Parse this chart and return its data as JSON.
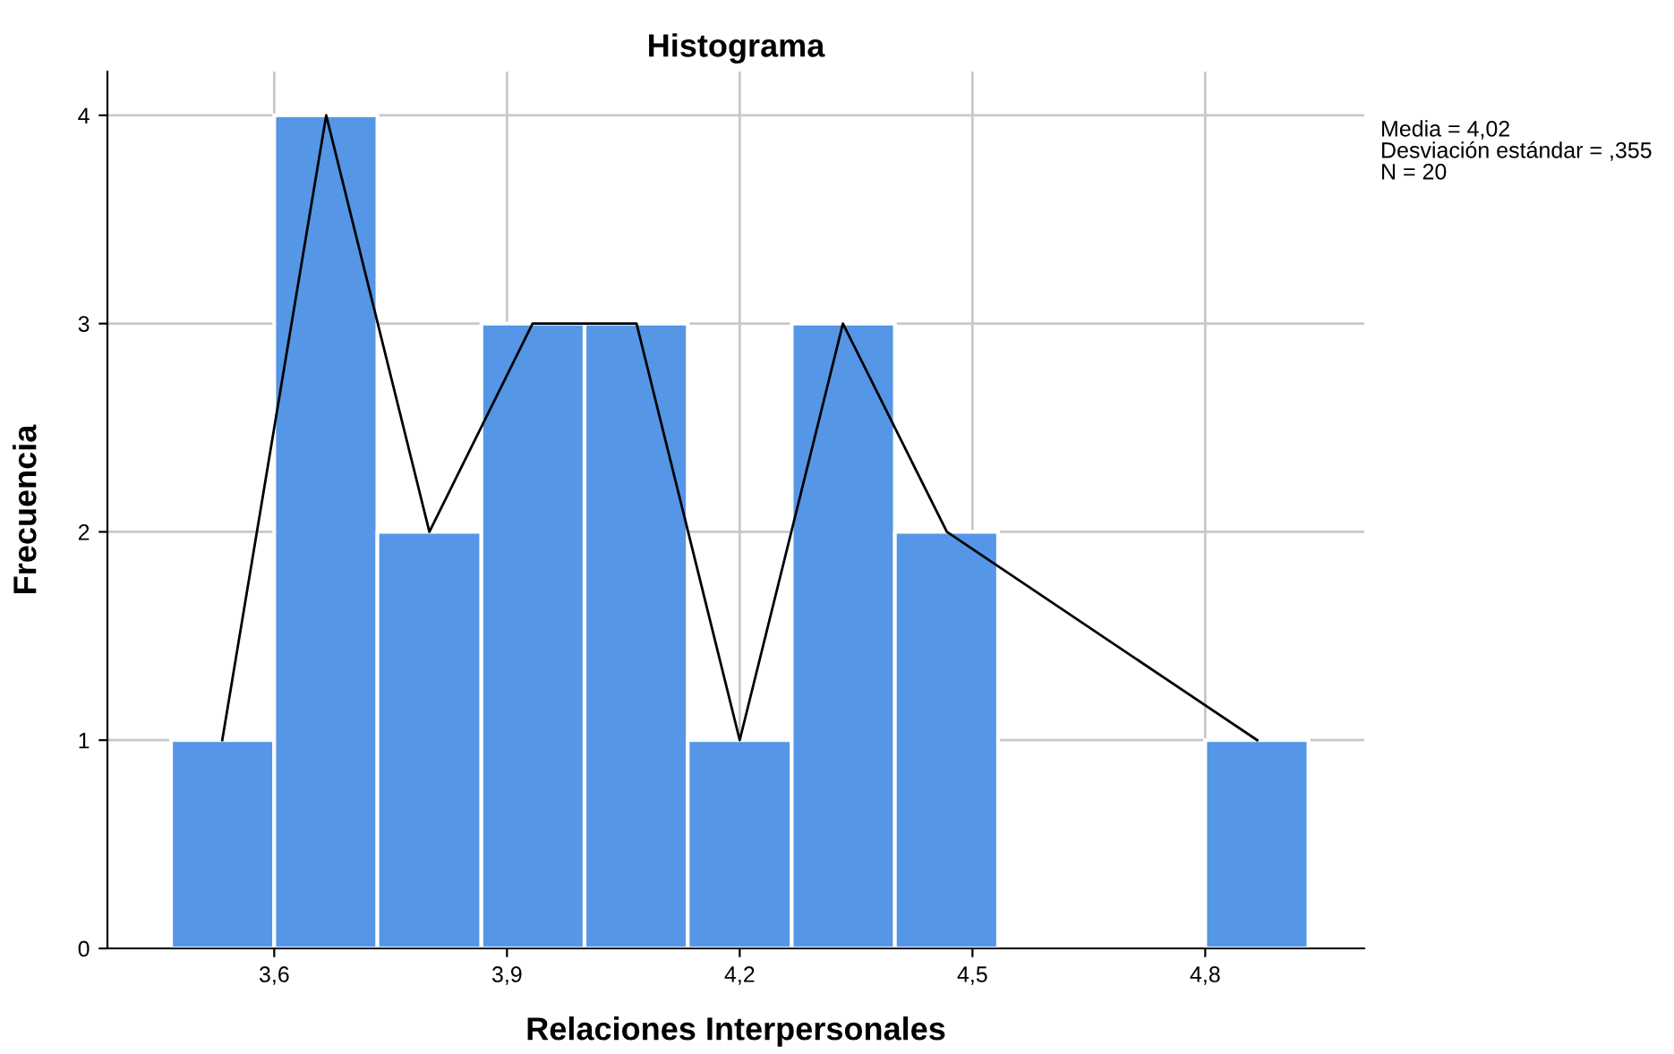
{
  "chart_data": {
    "type": "histogram",
    "title": "Histograma",
    "xlabel": "Relaciones Interpersonales",
    "ylabel": "Frecuencia",
    "bins": [
      3.467,
      3.6,
      3.733,
      3.867,
      4.0,
      4.133,
      4.267,
      4.4,
      4.533,
      4.8,
      4.933
    ],
    "values": [
      1,
      4,
      2,
      3,
      3,
      1,
      3,
      2,
      0,
      1
    ],
    "color": "#5596e6",
    "series": [
      {
        "type": "line",
        "color": "#000000",
        "x": [
          3.533,
          3.667,
          3.8,
          3.933,
          4.067,
          4.2,
          4.333,
          4.467,
          4.867
        ],
        "values": [
          1,
          4,
          2,
          3,
          3,
          1,
          3,
          2,
          1
        ]
      }
    ],
    "xlim": [
      3.385,
      5.005
    ],
    "ylim": [
      0,
      4.21
    ],
    "xticks": [
      {
        "value": 3.6,
        "label": "3,6"
      },
      {
        "value": 3.9,
        "label": "3,9"
      },
      {
        "value": 4.2,
        "label": "4,2"
      },
      {
        "value": 4.5,
        "label": "4,5"
      },
      {
        "value": 4.8,
        "label": "4,8"
      }
    ],
    "yticks": [
      0,
      1,
      2,
      3,
      4
    ],
    "grid": true,
    "annotations": [
      "Media = 4,02",
      "Desviación estándar = ,355",
      "N = 20"
    ]
  }
}
